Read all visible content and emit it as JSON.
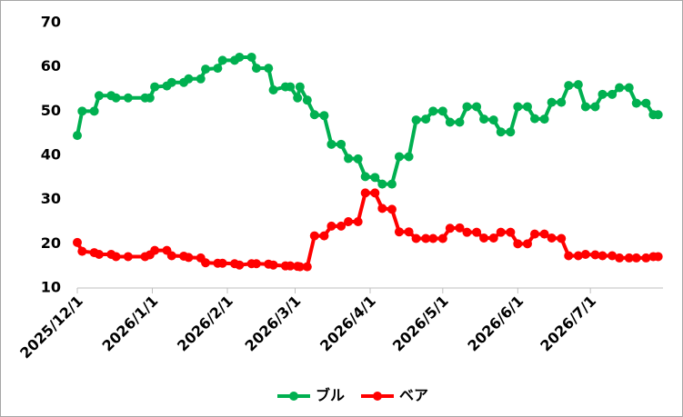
{
  "chart_data": {
    "type": "line",
    "x": [
      "2025/12/1",
      "2025/12/3",
      "2025/12/8",
      "2025/12/10",
      "2025/12/15",
      "2025/12/17",
      "2025/12/22",
      "2025/12/29",
      "2025/12/31",
      "2026/1/2",
      "2026/1/7",
      "2026/1/9",
      "2026/1/14",
      "2026/1/16",
      "2026/1/21",
      "2026/1/23",
      "2026/1/28",
      "2026/1/30",
      "2026/2/4",
      "2026/2/6",
      "2026/2/11",
      "2026/2/13",
      "2026/2/18",
      "2026/2/20",
      "2026/2/25",
      "2026/2/27",
      "2026/3/2",
      "2026/3/3",
      "2026/3/6",
      "2026/3/9",
      "2026/3/13",
      "2026/3/16",
      "2026/3/20",
      "2026/3/23",
      "2026/3/27",
      "2026/3/30",
      "2026/4/3",
      "2026/4/6",
      "2026/4/10",
      "2026/4/13",
      "2026/4/17",
      "2026/4/20",
      "2026/4/24",
      "2026/4/27",
      "2026/5/1",
      "2026/5/4",
      "2026/5/8",
      "2026/5/11",
      "2026/5/15",
      "2026/5/18",
      "2026/5/22",
      "2026/5/25",
      "2026/5/29",
      "2026/6/1",
      "2026/6/5",
      "2026/6/8",
      "2026/6/12",
      "2026/6/15",
      "2026/6/19",
      "2026/6/22",
      "2026/6/26",
      "2026/6/29",
      "2026/7/3",
      "2026/7/6",
      "2026/7/10",
      "2026/7/13",
      "2026/7/17",
      "2026/7/20",
      "2026/7/24",
      "2026/7/27",
      "2026/7/29"
    ],
    "series": [
      {
        "name": "ブル",
        "color": "#00b050",
        "values": [
          44.5,
          50,
          50,
          53.5,
          53.5,
          53,
          53,
          53,
          53,
          55.5,
          55.7,
          56.5,
          56.5,
          57.3,
          57.3,
          59.5,
          59.7,
          61.5,
          61.5,
          62.2,
          62.2,
          59.7,
          59.7,
          54.8,
          55.5,
          55.5,
          53,
          55.5,
          52.5,
          49.2,
          49,
          42.5,
          42.5,
          39.3,
          39.2,
          35.2,
          35,
          33.5,
          33.5,
          39.7,
          39.7,
          48,
          48.2,
          50,
          50,
          47.5,
          47.5,
          51,
          51,
          48.2,
          48,
          45.3,
          45.3,
          51,
          51,
          48.3,
          48.2,
          52,
          52,
          55.8,
          56,
          51,
          51,
          53.8,
          53.8,
          55.3,
          55.3,
          51.8,
          51.8,
          49.2,
          49.2
        ]
      },
      {
        "name": "ベア",
        "color": "#ff0000",
        "values": [
          20.3,
          18.3,
          18,
          17.6,
          17.6,
          17.1,
          17.1,
          17.1,
          17.5,
          18.5,
          18.5,
          17.3,
          17.2,
          16.9,
          16.8,
          15.7,
          15.6,
          15.6,
          15.5,
          15.2,
          15.5,
          15.5,
          15.4,
          15.2,
          15,
          15,
          14.9,
          14.8,
          14.8,
          21.8,
          21.8,
          24,
          24,
          25,
          25,
          31.5,
          31.5,
          28,
          27.8,
          22.7,
          22.7,
          21.2,
          21.2,
          21.2,
          21.2,
          23.5,
          23.6,
          22.6,
          22.6,
          21.3,
          21.3,
          22.6,
          22.6,
          20,
          20,
          22.2,
          22.2,
          21.3,
          21.2,
          17.3,
          17.3,
          17.6,
          17.5,
          17.3,
          17.3,
          16.8,
          16.8,
          16.8,
          16.8,
          17.1,
          17.1
        ]
      }
    ],
    "xlim": [
      "2025/12/1",
      "2026/7/31"
    ],
    "xticks": [
      "2025/12/1",
      "2026/1/1",
      "2026/2/1",
      "2026/3/1",
      "2026/4/1",
      "2026/5/1",
      "2026/6/1",
      "2026/7/1"
    ],
    "ylim": [
      10,
      70
    ],
    "yticks": [
      10,
      20,
      30,
      40,
      50,
      60,
      70
    ],
    "grid": false,
    "legend": "bottom"
  }
}
